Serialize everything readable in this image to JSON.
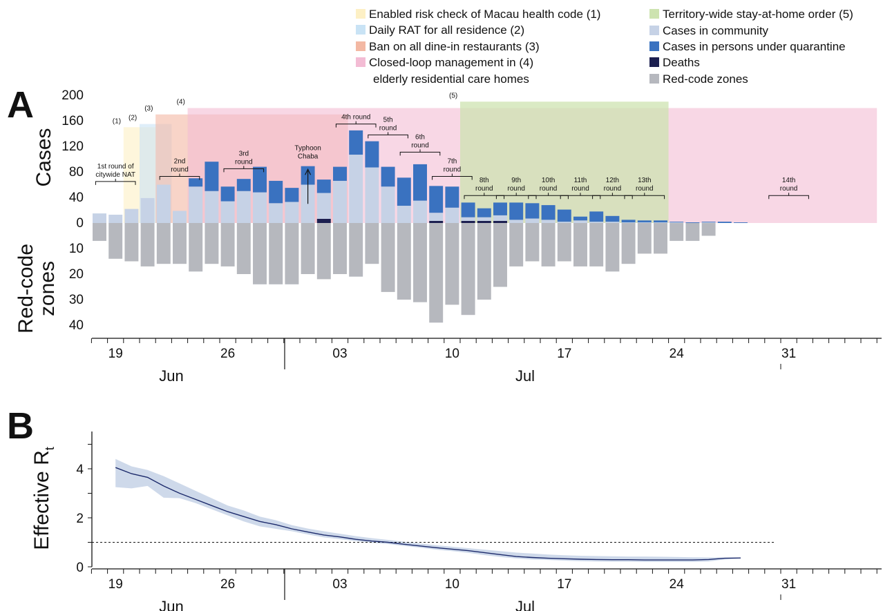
{
  "panel_labels": [
    "A",
    "B"
  ],
  "legend": [
    {
      "label": "Enabled risk check of Macau health code",
      "tag": "(1)",
      "color": "#fdf0c5"
    },
    {
      "label": "Daily RAT for all residence",
      "tag": "(2)",
      "color": "#c9e3f5"
    },
    {
      "label": "Ban on all dine-in restaurants",
      "tag": "(3)",
      "color": "#f3b8a3"
    },
    {
      "label": "Closed-loop management in",
      "tag": "(4)",
      "line2": "elderly residential care homes",
      "color": "#f3bcd4"
    },
    {
      "label": "Territory-wide stay-at-home order",
      "tag": "(5)",
      "color": "#cde3b0"
    },
    {
      "label": "Cases in community",
      "color": "#c6d2e6"
    },
    {
      "label": "Cases in persons under quarantine",
      "color": "#3a72c0"
    },
    {
      "label": "Deaths",
      "color": "#1c1f50"
    },
    {
      "label": "Red-code zones",
      "color": "#b6b8be"
    }
  ],
  "chart_data": [
    {
      "type": "bar",
      "panel": "A",
      "ylabel": "Cases",
      "ylabel_lower": [
        "Red-code",
        "zones"
      ],
      "ylim": [
        0,
        200
      ],
      "yticks": [
        0,
        40,
        80,
        120,
        160,
        200
      ],
      "lower_ylim": [
        0,
        40
      ],
      "lower_yticks": [
        10,
        20,
        30,
        40
      ],
      "dates": [
        "2022-06-18",
        "2022-06-19",
        "2022-06-20",
        "2022-06-21",
        "2022-06-22",
        "2022-06-23",
        "2022-06-24",
        "2022-06-25",
        "2022-06-26",
        "2022-06-27",
        "2022-06-28",
        "2022-06-29",
        "2022-06-30",
        "2022-07-01",
        "2022-07-02",
        "2022-07-03",
        "2022-07-04",
        "2022-07-05",
        "2022-07-06",
        "2022-07-07",
        "2022-07-08",
        "2022-07-09",
        "2022-07-10",
        "2022-07-11",
        "2022-07-12",
        "2022-07-13",
        "2022-07-14",
        "2022-07-15",
        "2022-07-16",
        "2022-07-17",
        "2022-07-18",
        "2022-07-19",
        "2022-07-20",
        "2022-07-21",
        "2022-07-22",
        "2022-07-23",
        "2022-07-24",
        "2022-07-25",
        "2022-07-26",
        "2022-07-27",
        "2022-07-28"
      ],
      "x_tick_labels": [
        "19",
        "26",
        "03",
        "10",
        "17",
        "24",
        "31"
      ],
      "month_labels": [
        "Jun",
        "Jul"
      ],
      "series": [
        {
          "name": "Cases in community",
          "values": [
            15,
            13,
            22,
            39,
            60,
            19,
            57,
            50,
            34,
            50,
            48,
            31,
            33,
            60,
            47,
            66,
            107,
            87,
            57,
            27,
            35,
            16,
            24,
            9,
            9,
            12,
            5,
            7,
            5,
            2,
            4,
            2,
            2,
            1,
            1,
            1,
            1,
            0,
            1,
            0,
            0
          ]
        },
        {
          "name": "Cases in persons under quarantine",
          "values": [
            0,
            0,
            0,
            0,
            0,
            0,
            13,
            46,
            23,
            19,
            40,
            35,
            22,
            29,
            21,
            22,
            38,
            41,
            31,
            44,
            57,
            42,
            33,
            23,
            14,
            20,
            27,
            24,
            23,
            19,
            6,
            16,
            9,
            4,
            3,
            3,
            1,
            1,
            1,
            2,
            1
          ]
        },
        {
          "name": "Deaths",
          "values": [
            0,
            0,
            0,
            0,
            0,
            0,
            0,
            0,
            0,
            0,
            0,
            0,
            0,
            0,
            2,
            0,
            0,
            0,
            0,
            0,
            0,
            1,
            0,
            1,
            1,
            1,
            0,
            0,
            0,
            0,
            0,
            0,
            0,
            0,
            0,
            0,
            0,
            0,
            0,
            0,
            0
          ]
        },
        {
          "name": "Red-code zones",
          "values": [
            7,
            14,
            15,
            17,
            16,
            16,
            19,
            16,
            17,
            20,
            24,
            24,
            24,
            20,
            22,
            20,
            21,
            16,
            27,
            30,
            31,
            39,
            32,
            36,
            30,
            25,
            17,
            15,
            17,
            15,
            17,
            17,
            19,
            16,
            12,
            12,
            7,
            7,
            5,
            0,
            0
          ]
        }
      ],
      "interventions": [
        {
          "tag": "(1)",
          "start": "2022-06-20",
          "end": "2022-06-21",
          "top": 150
        },
        {
          "tag": "(2)",
          "start": "2022-06-21",
          "end": "2022-06-22",
          "top": 155
        },
        {
          "tag": "(3)",
          "start": "2022-06-22",
          "end": "2022-07-03",
          "top": 170
        },
        {
          "tag": "(4)",
          "start": "2022-06-24",
          "end": "2022-08-05",
          "top": 180
        },
        {
          "tag": "(5)",
          "start": "2022-07-11",
          "end": "2022-07-23",
          "top": 190
        }
      ],
      "nat_rounds": [
        {
          "label": [
            "1st round of",
            "citywide NAT"
          ],
          "start": "2022-06-18",
          "end": "2022-06-20",
          "level": 65
        },
        {
          "label": [
            "2nd",
            "round"
          ],
          "start": "2022-06-22",
          "end": "2022-06-24",
          "level": 73
        },
        {
          "label": [
            "3rd",
            "round"
          ],
          "start": "2022-06-26",
          "end": "2022-06-28",
          "level": 85
        },
        {
          "label": [
            "Typhoon",
            "Chaba"
          ],
          "arrow": true,
          "date": "2022-07-01",
          "level": 97
        },
        {
          "label": [
            "4th round"
          ],
          "start": "2022-07-03",
          "end": "2022-07-05",
          "level": 155
        },
        {
          "label": [
            "5th",
            "round"
          ],
          "start": "2022-07-05",
          "end": "2022-07-07",
          "level": 138
        },
        {
          "label": [
            "6th",
            "round"
          ],
          "start": "2022-07-07",
          "end": "2022-07-09",
          "level": 111
        },
        {
          "label": [
            "7th",
            "round"
          ],
          "start": "2022-07-09",
          "end": "2022-07-11",
          "level": 73
        },
        {
          "label": [
            "8th",
            "round"
          ],
          "start": "2022-07-11",
          "end": "2022-07-13",
          "level": 43
        },
        {
          "label": [
            "9th",
            "round"
          ],
          "start": "2022-07-13",
          "end": "2022-07-15",
          "level": 43
        },
        {
          "label": [
            "10th",
            "round"
          ],
          "start": "2022-07-15",
          "end": "2022-07-17",
          "level": 43
        },
        {
          "label": [
            "11th",
            "round"
          ],
          "start": "2022-07-17",
          "end": "2022-07-19",
          "level": 43
        },
        {
          "label": [
            "12th",
            "round"
          ],
          "start": "2022-07-19",
          "end": "2022-07-21",
          "level": 43
        },
        {
          "label": [
            "13th",
            "round"
          ],
          "start": "2022-07-21",
          "end": "2022-07-23",
          "level": 43
        },
        {
          "label": [
            "14th",
            "round"
          ],
          "start": "2022-07-30",
          "end": "2022-08-01",
          "level": 43
        }
      ]
    },
    {
      "type": "line",
      "panel": "B",
      "ylabel": "Effective R",
      "ylabel_subscript": "t",
      "ylim": [
        0,
        5.5
      ],
      "yticks": [
        0,
        2,
        4
      ],
      "reference_line": 1,
      "x_tick_labels": [
        "19",
        "26",
        "03",
        "10",
        "17",
        "24",
        "31"
      ],
      "month_labels": [
        "Jun",
        "Jul"
      ],
      "x": [
        "2022-06-19",
        "2022-06-20",
        "2022-06-21",
        "2022-06-22",
        "2022-06-23",
        "2022-06-24",
        "2022-06-25",
        "2022-06-26",
        "2022-06-27",
        "2022-06-28",
        "2022-06-29",
        "2022-06-30",
        "2022-07-01",
        "2022-07-02",
        "2022-07-03",
        "2022-07-04",
        "2022-07-05",
        "2022-07-06",
        "2022-07-07",
        "2022-07-08",
        "2022-07-09",
        "2022-07-10",
        "2022-07-11",
        "2022-07-12",
        "2022-07-13",
        "2022-07-14",
        "2022-07-15",
        "2022-07-16",
        "2022-07-17",
        "2022-07-18",
        "2022-07-19",
        "2022-07-20",
        "2022-07-21",
        "2022-07-22",
        "2022-07-23",
        "2022-07-24",
        "2022-07-25",
        "2022-07-26",
        "2022-07-27",
        "2022-07-28"
      ],
      "series": [
        {
          "values": [
            4.05,
            3.8,
            3.65,
            3.3,
            3.0,
            2.75,
            2.5,
            2.25,
            2.05,
            1.85,
            1.72,
            1.55,
            1.42,
            1.3,
            1.22,
            1.12,
            1.05,
            1.0,
            0.92,
            0.85,
            0.78,
            0.72,
            0.66,
            0.58,
            0.5,
            0.42,
            0.38,
            0.35,
            0.33,
            0.31,
            0.3,
            0.29,
            0.29,
            0.28,
            0.28,
            0.28,
            0.28,
            0.3,
            0.35,
            0.36
          ]
        },
        {
          "values": [
            4.4,
            4.1,
            3.95,
            3.7,
            3.4,
            3.1,
            2.8,
            2.5,
            2.3,
            2.05,
            1.9,
            1.7,
            1.56,
            1.45,
            1.35,
            1.25,
            1.17,
            1.1,
            1.02,
            0.95,
            0.88,
            0.82,
            0.76,
            0.7,
            0.64,
            0.58,
            0.54,
            0.5,
            0.47,
            0.45,
            0.44,
            0.43,
            0.42,
            0.42,
            0.41,
            0.4,
            0.39,
            0.38,
            0.38,
            0.38
          ]
        },
        {
          "values": [
            3.25,
            3.2,
            3.3,
            2.82,
            2.8,
            2.6,
            2.35,
            2.1,
            1.85,
            1.65,
            1.55,
            1.45,
            1.32,
            1.2,
            1.13,
            1.05,
            0.98,
            0.93,
            0.85,
            0.78,
            0.7,
            0.64,
            0.57,
            0.48,
            0.4,
            0.34,
            0.3,
            0.28,
            0.25,
            0.23,
            0.22,
            0.21,
            0.21,
            0.2,
            0.2,
            0.2,
            0.2,
            0.22,
            0.3,
            0.34
          ]
        }
      ]
    }
  ]
}
